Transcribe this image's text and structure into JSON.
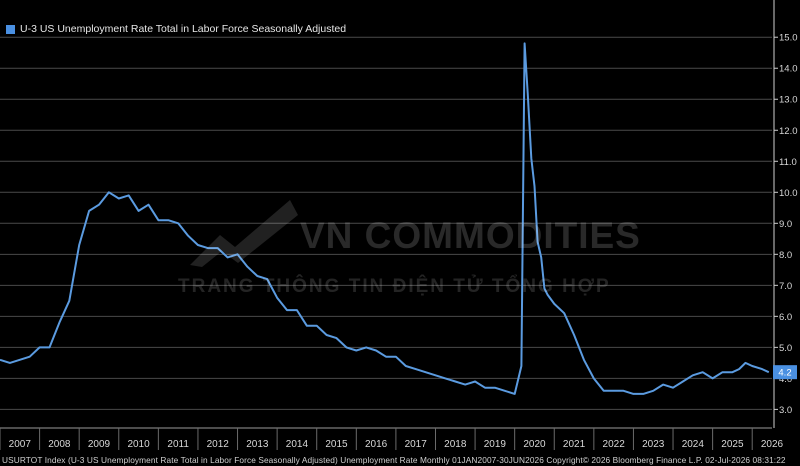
{
  "legend": {
    "label": "U-3 US Unemployment Rate Total in Labor Force Seasonally Adjusted"
  },
  "watermark": {
    "title": "VN COMMODITIES",
    "subtitle": "TRANG THÔNG TIN ĐIỆN TỬ TỔNG HỢP"
  },
  "footer": {
    "text": "USURTOT Index (U-3 US Unemployment Rate Total in Labor Force Seasonally Adjusted) Unemployment Rate Monthly 01JAN2007-30JUN2026 Copyright© 2026 Bloomberg Finance L.P.  02-Jul-2026 08:31:22"
  },
  "colors": {
    "background": "#000000",
    "line": "#5b9be0",
    "grid": "#4a4a4a",
    "text": "#d8d8d8"
  },
  "chart_data": {
    "type": "line",
    "title": "",
    "xlabel": "",
    "ylabel": "",
    "xlim": [
      2007.0,
      2026.5
    ],
    "ylim": [
      2.4,
      16.2
    ],
    "y_ticks": [
      3.0,
      4.0,
      5.0,
      6.0,
      7.0,
      8.0,
      9.0,
      10.0,
      11.0,
      12.0,
      13.0,
      14.0,
      15.0
    ],
    "x_tick_labels": [
      "2007",
      "2008",
      "2009",
      "2010",
      "2011",
      "2012",
      "2013",
      "2014",
      "2015",
      "2016",
      "2017",
      "2018",
      "2019",
      "2020",
      "2021",
      "2022",
      "2023",
      "2024",
      "2025",
      "2026"
    ],
    "grid": "horizontal",
    "legend_position": "top-left",
    "last_value_label": "4.2",
    "series": [
      {
        "name": "U-3 US Unemployment Rate Total in Labor Force Seasonally Adjusted",
        "x": [
          2007.0,
          2007.25,
          2007.5,
          2007.75,
          2008.0,
          2008.25,
          2008.5,
          2008.75,
          2009.0,
          2009.25,
          2009.5,
          2009.75,
          2010.0,
          2010.25,
          2010.5,
          2010.75,
          2011.0,
          2011.25,
          2011.5,
          2011.75,
          2012.0,
          2012.25,
          2012.5,
          2012.75,
          2013.0,
          2013.25,
          2013.5,
          2013.75,
          2014.0,
          2014.25,
          2014.5,
          2014.75,
          2015.0,
          2015.25,
          2015.5,
          2015.75,
          2016.0,
          2016.25,
          2016.5,
          2016.75,
          2017.0,
          2017.25,
          2017.5,
          2017.75,
          2018.0,
          2018.25,
          2018.5,
          2018.75,
          2019.0,
          2019.25,
          2019.5,
          2019.75,
          2020.0,
          2020.17,
          2020.25,
          2020.33,
          2020.42,
          2020.5,
          2020.58,
          2020.67,
          2020.75,
          2020.83,
          2021.0,
          2021.25,
          2021.5,
          2021.75,
          2022.0,
          2022.25,
          2022.5,
          2022.75,
          2023.0,
          2023.25,
          2023.5,
          2023.75,
          2024.0,
          2024.25,
          2024.5,
          2024.75,
          2025.0,
          2025.25,
          2025.5,
          2025.67,
          2025.83,
          2026.0,
          2026.25,
          2026.42
        ],
        "values": [
          4.6,
          4.5,
          4.6,
          4.7,
          5.0,
          5.0,
          5.8,
          6.5,
          8.3,
          9.4,
          9.6,
          10.0,
          9.8,
          9.9,
          9.4,
          9.6,
          9.1,
          9.1,
          9.0,
          8.6,
          8.3,
          8.2,
          8.2,
          7.9,
          8.0,
          7.6,
          7.3,
          7.2,
          6.6,
          6.2,
          6.2,
          5.7,
          5.7,
          5.4,
          5.3,
          5.0,
          4.9,
          5.0,
          4.9,
          4.7,
          4.7,
          4.4,
          4.3,
          4.2,
          4.1,
          4.0,
          3.9,
          3.8,
          3.9,
          3.7,
          3.7,
          3.6,
          3.5,
          4.4,
          14.8,
          13.2,
          11.1,
          10.2,
          8.4,
          7.9,
          6.9,
          6.7,
          6.4,
          6.1,
          5.4,
          4.6,
          4.0,
          3.6,
          3.6,
          3.6,
          3.5,
          3.5,
          3.6,
          3.8,
          3.7,
          3.9,
          4.1,
          4.2,
          4.0,
          4.2,
          4.2,
          4.3,
          4.5,
          4.4,
          4.3,
          4.2
        ]
      }
    ]
  }
}
